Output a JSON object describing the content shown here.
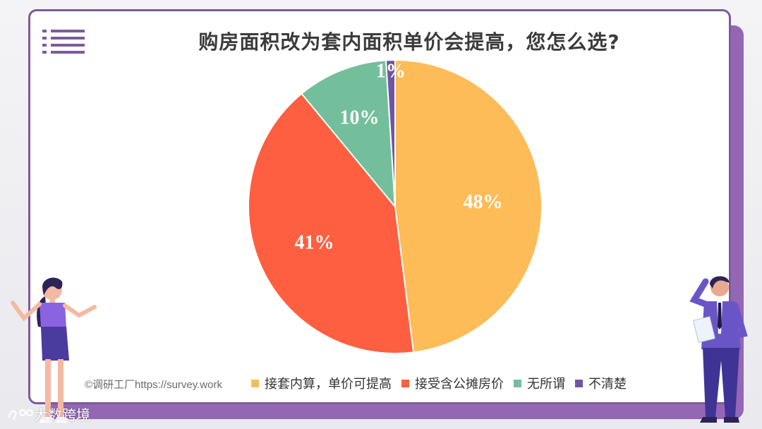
{
  "title": "购房面积改为套内面积单价会提高，您怎么选?",
  "credit": "©调研工厂https://survey.work",
  "watermark": "大数跨境",
  "colors": {
    "accent": "#7e5a9b",
    "shadow": "#9467b5"
  },
  "chart_data": {
    "type": "pie",
    "categories": [
      "接套内算，单价可提高",
      "接受含公摊房价",
      "无所谓",
      "不清楚"
    ],
    "values": [
      48,
      41,
      10,
      1
    ],
    "labels": [
      "48%",
      "41%",
      "10%",
      "1%"
    ],
    "colors": [
      "#fdbc58",
      "#fe5f40",
      "#74bf9b",
      "#7155a4"
    ],
    "legend_position": "bottom"
  }
}
